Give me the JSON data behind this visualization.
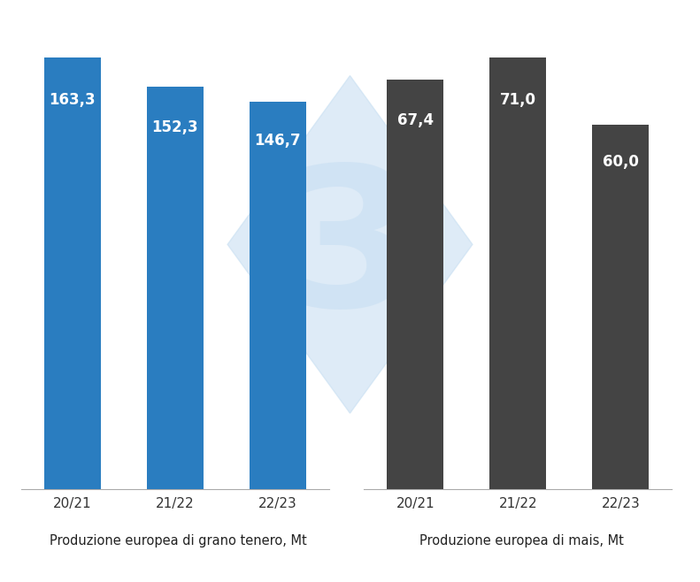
{
  "grano_categories": [
    "20/21",
    "21/22",
    "22/23"
  ],
  "grano_values": [
    163.3,
    152.3,
    146.7
  ],
  "grano_color": "#2A7DC0",
  "grano_label": "Produzione europea di grano tenero, Mt",
  "mais_categories": [
    "20/21",
    "21/22",
    "22/23"
  ],
  "mais_values": [
    67.4,
    71.0,
    60.0
  ],
  "mais_color": "#444444",
  "mais_label": "Produzione europea di mais, Mt",
  "bar_width": 0.55,
  "background_color": "#FFFFFF",
  "text_color": "#FFFFFF",
  "label_fontsize": 12,
  "axis_tick_fontsize": 11,
  "subtitle_fontsize": 10.5,
  "watermark_text": "3",
  "watermark_color": "#C8DFF2",
  "watermark_alpha": 0.6
}
